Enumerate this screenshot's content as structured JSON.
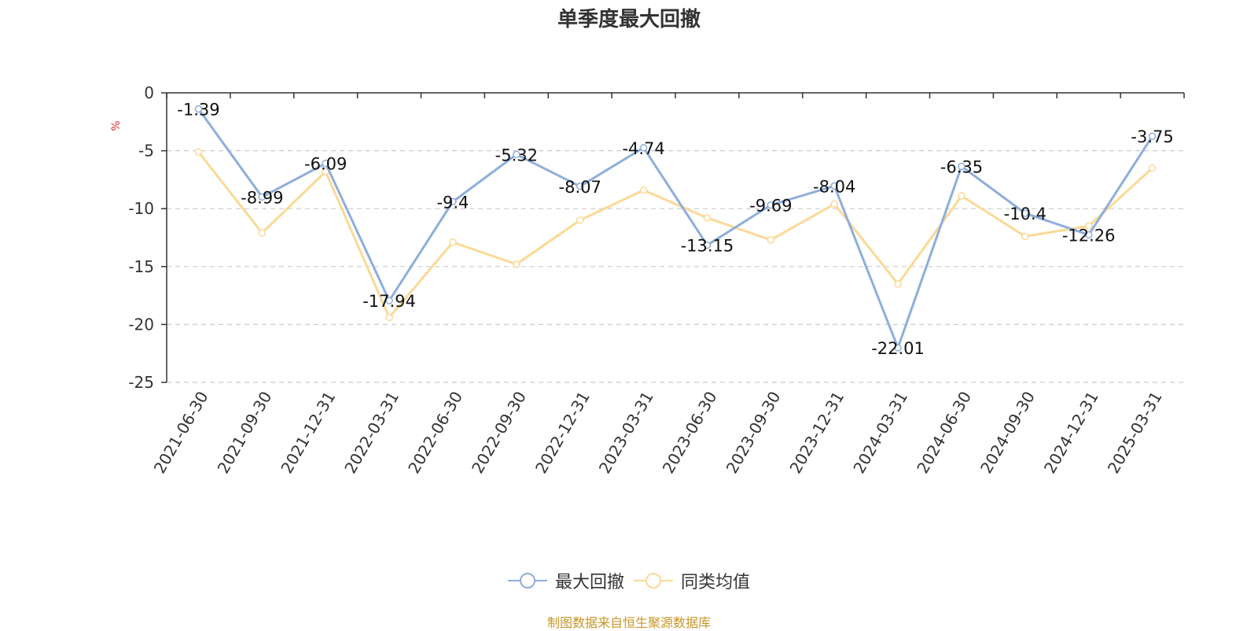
{
  "chart_data": {
    "type": "line",
    "title": "单季度最大回撤",
    "ylabel": "%",
    "ylim": [
      -25,
      0
    ],
    "yticks": [
      0,
      -5,
      -10,
      -15,
      -20,
      -25
    ],
    "grid": true,
    "legend_position": "bottom",
    "categories": [
      "2021-06-30",
      "2021-09-30",
      "2021-12-31",
      "2022-03-31",
      "2022-06-30",
      "2022-09-30",
      "2022-12-31",
      "2023-03-31",
      "2023-06-30",
      "2023-09-30",
      "2023-12-31",
      "2024-03-31",
      "2024-06-30",
      "2024-09-30",
      "2024-12-31",
      "2025-03-31"
    ],
    "series": [
      {
        "name": "最大回撤",
        "color": "#8eaedb",
        "show_labels": true,
        "values": [
          -1.39,
          -8.99,
          -6.09,
          -17.94,
          -9.4,
          -5.32,
          -8.07,
          -4.74,
          -13.15,
          -9.69,
          -8.04,
          -22.01,
          -6.35,
          -10.4,
          -12.26,
          -3.75
        ]
      },
      {
        "name": "同类均值",
        "color": "#fbd996",
        "show_labels": false,
        "values": [
          -5.1,
          -12.1,
          -6.8,
          -19.4,
          -12.9,
          -14.8,
          -11.0,
          -8.4,
          -10.8,
          -12.7,
          -9.6,
          -16.5,
          -8.9,
          -12.4,
          -11.5,
          -6.5
        ]
      }
    ]
  },
  "source_note": "制图数据来自恒生聚源数据库"
}
